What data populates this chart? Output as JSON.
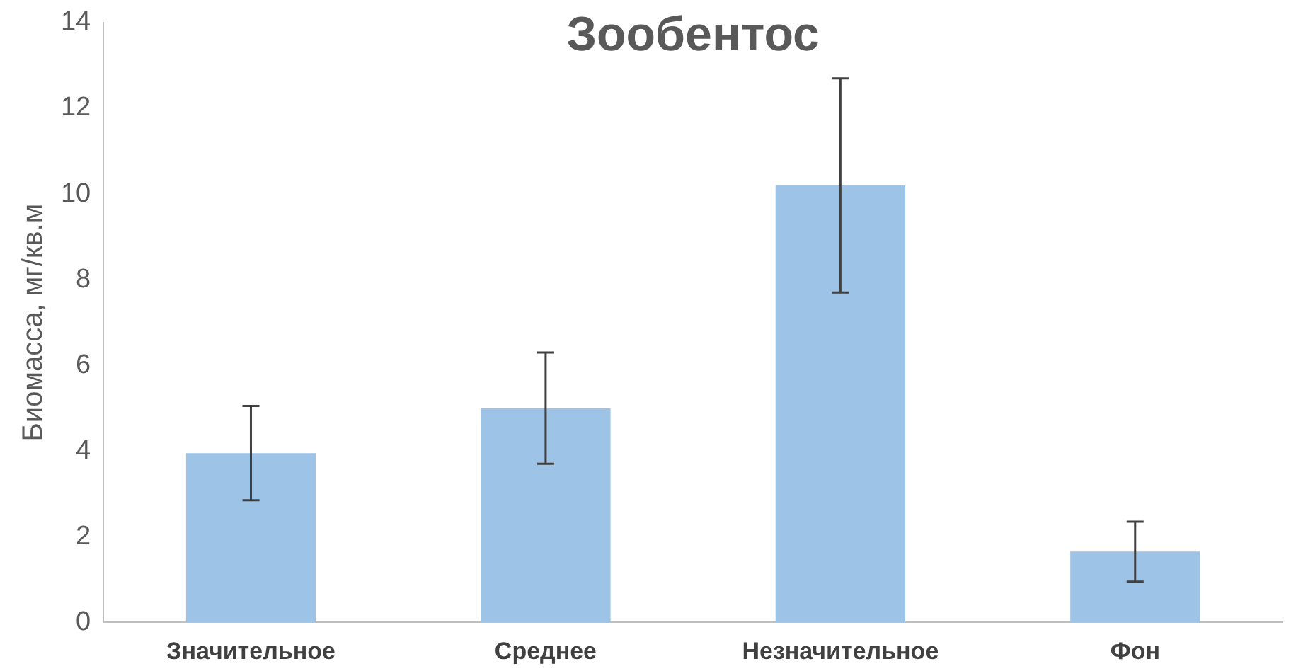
{
  "chart_data": {
    "type": "bar",
    "title": "Зообентос",
    "ylabel": "Биомасса, мг/кв.м",
    "categories": [
      "Значительное",
      "Среднее",
      "Незначительное",
      "Фон"
    ],
    "values": [
      3.95,
      5.0,
      10.2,
      1.65
    ],
    "errors": [
      1.1,
      1.3,
      2.5,
      0.7
    ],
    "color": "#9dc3e6",
    "ylim": [
      0,
      14
    ],
    "yticks": [
      0,
      2,
      4,
      6,
      8,
      10,
      12,
      14
    ],
    "grid": false
  }
}
